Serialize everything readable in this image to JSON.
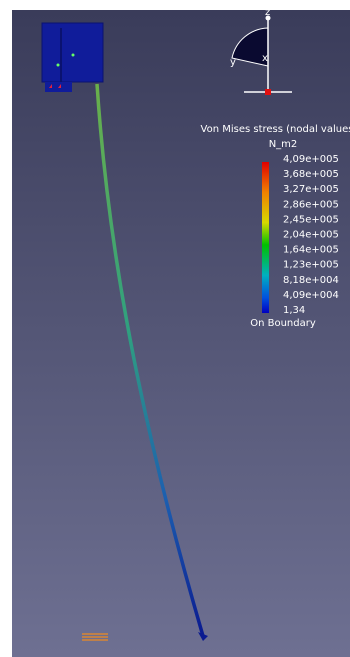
{
  "legend": {
    "title": "Von Mises stress (nodal values",
    "unit": "N_m2",
    "labels": [
      "4,09e+005",
      "3,68e+005",
      "3,27e+005",
      "2,86e+005",
      "2,45e+005",
      "2,04e+005",
      "1,64e+005",
      "1,23e+005",
      "8,18e+004",
      "4,09e+004",
      "1,34"
    ],
    "footer": "On Boundary"
  },
  "axes": {
    "z": "z",
    "y": "y",
    "x": "x"
  }
}
